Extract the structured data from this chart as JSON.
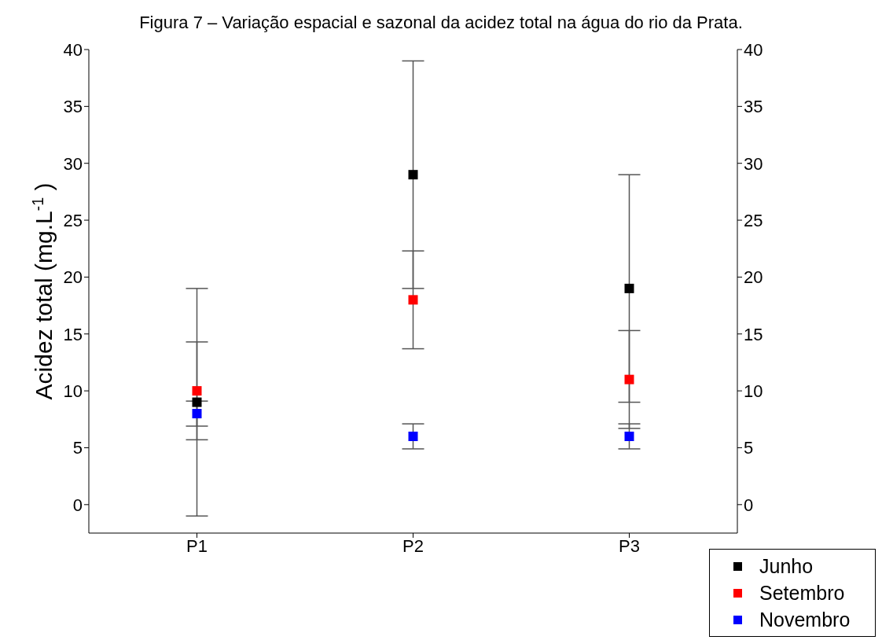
{
  "chart_data": {
    "type": "scatter",
    "title": "Figura 7 – Variação espacial e sazonal da acidez total na água do rio da Prata.",
    "ylabel": "Acidez total (mg.L$^{-1}$)",
    "categories": [
      "P1",
      "P2",
      "P3"
    ],
    "series": [
      {
        "name": "Junho",
        "color": "#000000",
        "values": [
          9,
          29,
          19
        ],
        "errors": [
          10,
          10,
          10
        ]
      },
      {
        "name": "Setembro",
        "color": "#ff0000",
        "values": [
          10,
          18,
          11
        ],
        "errors": [
          4.3,
          4.3,
          4.3
        ]
      },
      {
        "name": "Novembro",
        "color": "#0000ff",
        "values": [
          8,
          6,
          6
        ],
        "errors": [
          1.1,
          1.1,
          1.1
        ]
      }
    ],
    "ylim": [
      -2.5,
      40
    ],
    "yticks": [
      0,
      5,
      10,
      15,
      20,
      25,
      30,
      35,
      40
    ],
    "y2lim": [
      -2.5,
      40
    ],
    "y2ticks": [
      0,
      5,
      10,
      15,
      20,
      25,
      30,
      35,
      40
    ],
    "marker": "square",
    "grid": false,
    "legend": "bottom right"
  }
}
